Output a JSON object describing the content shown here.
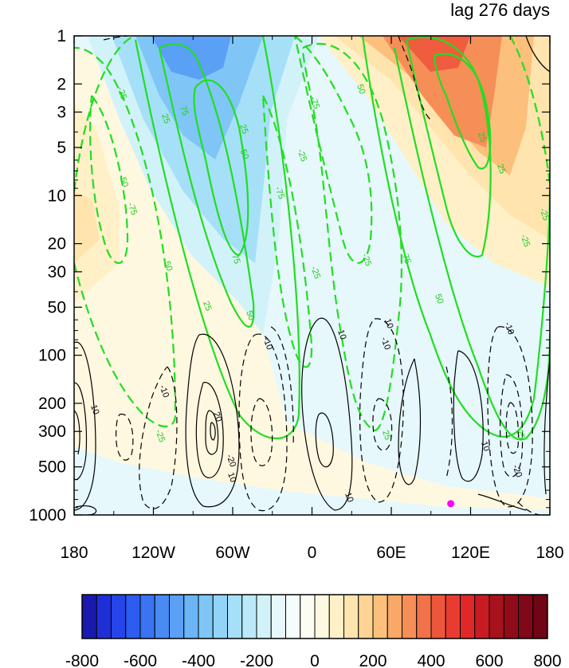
{
  "chart_data": {
    "type": "heatmap",
    "title_right": "lag 276 days",
    "x_ticks": [
      "180",
      "120W",
      "60W",
      "0",
      "60E",
      "120E",
      "180"
    ],
    "x_tick_values": [
      -180,
      -120,
      -60,
      0,
      60,
      120,
      180
    ],
    "y_ticks": [
      "1",
      "2",
      "3",
      "5",
      "10",
      "20",
      "30",
      "50",
      "100",
      "200",
      "300",
      "500",
      "1000"
    ],
    "y_tick_values": [
      1,
      2,
      3,
      5,
      10,
      20,
      30,
      50,
      100,
      200,
      300,
      500,
      1000
    ],
    "y_scale": "log",
    "y_reversed": true,
    "colorbar": {
      "tick_labels": [
        "-800",
        "-600",
        "-400",
        "-200",
        "0",
        "200",
        "400",
        "600",
        "800"
      ],
      "tick_values": [
        -800,
        -600,
        -400,
        -200,
        0,
        200,
        400,
        600,
        800
      ],
      "levels": [
        -800,
        -750,
        -700,
        -650,
        -600,
        -550,
        -500,
        -450,
        -400,
        -350,
        -300,
        -250,
        -200,
        -150,
        -100,
        -50,
        0,
        50,
        100,
        150,
        200,
        250,
        300,
        350,
        400,
        450,
        500,
        550,
        600,
        650,
        700,
        750,
        800
      ],
      "colors": [
        "#1a1ab0",
        "#1f2fd6",
        "#2545e8",
        "#2d5cf0",
        "#3a74f2",
        "#4a8af3",
        "#5aa0f4",
        "#6bb4f5",
        "#7fc6f6",
        "#92d4f7",
        "#a6e0f8",
        "#bbe9f9",
        "#d2f2fa",
        "#e6f8fb",
        "#f4fcfc",
        "#fbfdf3",
        "#fff8e0",
        "#fff0c8",
        "#ffe4ae",
        "#fed494",
        "#fcc07c",
        "#f9a868",
        "#f68e58",
        "#f27249",
        "#ee563c",
        "#e93c31",
        "#e02828",
        "#c81c22",
        "#a8121c",
        "#900c18",
        "#800818",
        "#700515"
      ]
    },
    "filled_regions": [
      {
        "value": -500,
        "lon": [
          -85,
          -70
        ],
        "p": [
          1,
          2.5
        ]
      },
      {
        "value": -350,
        "lon": [
          -110,
          -30
        ],
        "p": [
          1,
          8
        ]
      },
      {
        "value": -200,
        "lon": [
          -140,
          0
        ],
        "p": [
          1,
          30
        ]
      },
      {
        "value": -50,
        "lon": [
          -120,
          170
        ],
        "p": [
          1,
          1000
        ]
      },
      {
        "value": 500,
        "lon": [
          80,
          110
        ],
        "p": [
          1,
          2.5
        ]
      },
      {
        "value": 350,
        "lon": [
          60,
          140
        ],
        "p": [
          1,
          6
        ]
      },
      {
        "value": 200,
        "lon": [
          40,
          180
        ],
        "p": [
          1,
          40
        ]
      },
      {
        "value": 50,
        "lon": [
          -180,
          -120
        ],
        "p": [
          3,
          300
        ]
      }
    ],
    "green_contour_labels": [
      "-25",
      "-50",
      "-75",
      "-25",
      "25",
      "50",
      "75",
      "25",
      "75",
      "50",
      "25",
      "-50",
      "-75",
      "-25",
      "-75",
      "-25",
      "-25",
      "25",
      "50",
      "75",
      "50",
      "25",
      "25",
      "-25",
      "-25",
      "25"
    ],
    "black_contour_labels": [
      "10",
      "-10",
      "-10",
      "10",
      "10",
      "20",
      "-20",
      "10",
      "-10",
      "-10",
      "10",
      "-20",
      "10"
    ],
    "marker": {
      "lon": 105,
      "p": 850,
      "color": "#ff00ff"
    }
  }
}
